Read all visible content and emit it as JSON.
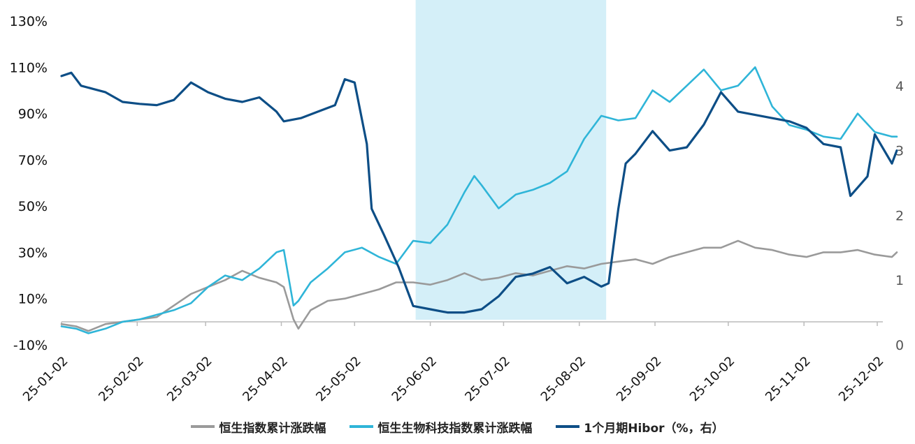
{
  "chart_data": {
    "type": "line",
    "title": "",
    "colors": {
      "hsi": "#9a9a9a",
      "hsbio": "#2fb5d8",
      "hibor": "#0d4e86",
      "highlight": "#d4eff8"
    },
    "x_ticks": [
      "25-01-02",
      "25-02-02",
      "25-03-02",
      "25-04-02",
      "25-05-02",
      "25-06-02",
      "25-07-02",
      "25-08-02",
      "25-09-02",
      "25-10-02",
      "25-11-02",
      "25-12-02"
    ],
    "y_left": {
      "ticks": [
        "130%",
        "110%",
        "90%",
        "70%",
        "50%",
        "30%",
        "10%",
        "-10%"
      ],
      "range": [
        -10,
        130
      ]
    },
    "y_right": {
      "ticks": [
        "5",
        "4",
        "3",
        "2",
        "1",
        "0"
      ],
      "range": [
        0,
        5
      ]
    },
    "highlight": {
      "from": "2025-05-27",
      "to": "2025-08-13"
    },
    "legend": [
      "恒生指数累计涨跌幅",
      "恒生生物科技指数累计涨跌幅",
      "1个月期Hibor（%，右）"
    ],
    "series": [
      {
        "name": "恒生指数累计涨跌幅",
        "axis": "left",
        "color_key": "hsi",
        "points": [
          [
            "2025-01-02",
            -1
          ],
          [
            "2025-01-08",
            -2
          ],
          [
            "2025-01-13",
            -4
          ],
          [
            "2025-01-20",
            -1
          ],
          [
            "2025-01-27",
            0
          ],
          [
            "2025-02-03",
            1
          ],
          [
            "2025-02-10",
            2
          ],
          [
            "2025-02-17",
            7
          ],
          [
            "2025-02-24",
            12
          ],
          [
            "2025-03-03",
            15
          ],
          [
            "2025-03-10",
            18
          ],
          [
            "2025-03-17",
            22
          ],
          [
            "2025-03-24",
            19
          ],
          [
            "2025-03-31",
            17
          ],
          [
            "2025-04-03",
            15
          ],
          [
            "2025-04-07",
            1
          ],
          [
            "2025-04-09",
            -3
          ],
          [
            "2025-04-14",
            5
          ],
          [
            "2025-04-21",
            9
          ],
          [
            "2025-04-28",
            10
          ],
          [
            "2025-05-05",
            12
          ],
          [
            "2025-05-12",
            14
          ],
          [
            "2025-05-19",
            17
          ],
          [
            "2025-05-26",
            17
          ],
          [
            "2025-06-02",
            16
          ],
          [
            "2025-06-09",
            18
          ],
          [
            "2025-06-16",
            21
          ],
          [
            "2025-06-23",
            18
          ],
          [
            "2025-06-30",
            19
          ],
          [
            "2025-07-07",
            21
          ],
          [
            "2025-07-14",
            20
          ],
          [
            "2025-07-21",
            22
          ],
          [
            "2025-07-28",
            24
          ],
          [
            "2025-08-04",
            23
          ],
          [
            "2025-08-11",
            25
          ],
          [
            "2025-08-18",
            26
          ],
          [
            "2025-08-25",
            27
          ],
          [
            "2025-09-01",
            25
          ],
          [
            "2025-09-08",
            28
          ],
          [
            "2025-09-15",
            30
          ],
          [
            "2025-09-22",
            32
          ],
          [
            "2025-09-29",
            32
          ],
          [
            "2025-10-06",
            35
          ],
          [
            "2025-10-13",
            32
          ],
          [
            "2025-10-20",
            31
          ],
          [
            "2025-10-27",
            29
          ],
          [
            "2025-11-03",
            28
          ],
          [
            "2025-11-10",
            30
          ],
          [
            "2025-11-17",
            30
          ],
          [
            "2025-11-24",
            31
          ],
          [
            "2025-12-01",
            29
          ],
          [
            "2025-12-08",
            28
          ],
          [
            "2025-12-10",
            30
          ]
        ]
      },
      {
        "name": "恒生生物科技指数累计涨跌幅",
        "axis": "left",
        "color_key": "hsbio",
        "points": [
          [
            "2025-01-02",
            -2
          ],
          [
            "2025-01-08",
            -3
          ],
          [
            "2025-01-13",
            -5
          ],
          [
            "2025-01-20",
            -3
          ],
          [
            "2025-01-27",
            0
          ],
          [
            "2025-02-03",
            1
          ],
          [
            "2025-02-10",
            3
          ],
          [
            "2025-02-17",
            5
          ],
          [
            "2025-02-24",
            8
          ],
          [
            "2025-03-03",
            15
          ],
          [
            "2025-03-10",
            20
          ],
          [
            "2025-03-17",
            18
          ],
          [
            "2025-03-24",
            23
          ],
          [
            "2025-03-31",
            30
          ],
          [
            "2025-04-03",
            31
          ],
          [
            "2025-04-07",
            7
          ],
          [
            "2025-04-09",
            9
          ],
          [
            "2025-04-14",
            17
          ],
          [
            "2025-04-21",
            23
          ],
          [
            "2025-04-28",
            30
          ],
          [
            "2025-05-05",
            32
          ],
          [
            "2025-05-12",
            28
          ],
          [
            "2025-05-19",
            25
          ],
          [
            "2025-05-26",
            35
          ],
          [
            "2025-06-02",
            34
          ],
          [
            "2025-06-09",
            42
          ],
          [
            "2025-06-16",
            56
          ],
          [
            "2025-06-20",
            63
          ],
          [
            "2025-06-23",
            59
          ],
          [
            "2025-06-30",
            49
          ],
          [
            "2025-07-07",
            55
          ],
          [
            "2025-07-14",
            57
          ],
          [
            "2025-07-21",
            60
          ],
          [
            "2025-07-28",
            65
          ],
          [
            "2025-08-04",
            79
          ],
          [
            "2025-08-11",
            89
          ],
          [
            "2025-08-18",
            87
          ],
          [
            "2025-08-25",
            88
          ],
          [
            "2025-09-01",
            100
          ],
          [
            "2025-09-08",
            95
          ],
          [
            "2025-09-15",
            102
          ],
          [
            "2025-09-22",
            109
          ],
          [
            "2025-09-29",
            100
          ],
          [
            "2025-10-06",
            102
          ],
          [
            "2025-10-13",
            110
          ],
          [
            "2025-10-20",
            93
          ],
          [
            "2025-10-27",
            85
          ],
          [
            "2025-11-03",
            83
          ],
          [
            "2025-11-10",
            80
          ],
          [
            "2025-11-17",
            79
          ],
          [
            "2025-11-24",
            90
          ],
          [
            "2025-12-01",
            82
          ],
          [
            "2025-12-08",
            80
          ],
          [
            "2025-12-10",
            80
          ]
        ]
      },
      {
        "name": "1个月期Hibor（%，右）",
        "axis": "right",
        "color_key": "hibor",
        "points": [
          [
            "2025-01-02",
            4.15
          ],
          [
            "2025-01-06",
            4.2
          ],
          [
            "2025-01-10",
            4.0
          ],
          [
            "2025-01-15",
            3.95
          ],
          [
            "2025-01-20",
            3.9
          ],
          [
            "2025-01-27",
            3.75
          ],
          [
            "2025-02-03",
            3.72
          ],
          [
            "2025-02-10",
            3.7
          ],
          [
            "2025-02-17",
            3.78
          ],
          [
            "2025-02-24",
            4.05
          ],
          [
            "2025-03-03",
            3.9
          ],
          [
            "2025-03-10",
            3.8
          ],
          [
            "2025-03-17",
            3.75
          ],
          [
            "2025-03-24",
            3.82
          ],
          [
            "2025-03-31",
            3.6
          ],
          [
            "2025-04-03",
            3.45
          ],
          [
            "2025-04-10",
            3.5
          ],
          [
            "2025-04-17",
            3.6
          ],
          [
            "2025-04-24",
            3.7
          ],
          [
            "2025-04-28",
            4.1
          ],
          [
            "2025-05-02",
            4.05
          ],
          [
            "2025-05-07",
            3.1
          ],
          [
            "2025-05-09",
            2.1
          ],
          [
            "2025-05-14",
            1.7
          ],
          [
            "2025-05-20",
            1.2
          ],
          [
            "2025-05-26",
            0.6
          ],
          [
            "2025-06-02",
            0.55
          ],
          [
            "2025-06-09",
            0.5
          ],
          [
            "2025-06-16",
            0.5
          ],
          [
            "2025-06-23",
            0.55
          ],
          [
            "2025-06-30",
            0.75
          ],
          [
            "2025-07-07",
            1.05
          ],
          [
            "2025-07-14",
            1.1
          ],
          [
            "2025-07-21",
            1.2
          ],
          [
            "2025-07-28",
            0.95
          ],
          [
            "2025-08-04",
            1.05
          ],
          [
            "2025-08-11",
            0.9
          ],
          [
            "2025-08-14",
            0.95
          ],
          [
            "2025-08-18",
            2.1
          ],
          [
            "2025-08-21",
            2.8
          ],
          [
            "2025-08-25",
            2.95
          ],
          [
            "2025-09-01",
            3.3
          ],
          [
            "2025-09-08",
            3.0
          ],
          [
            "2025-09-15",
            3.05
          ],
          [
            "2025-09-22",
            3.4
          ],
          [
            "2025-09-29",
            3.9
          ],
          [
            "2025-10-06",
            3.6
          ],
          [
            "2025-10-13",
            3.55
          ],
          [
            "2025-10-20",
            3.5
          ],
          [
            "2025-10-27",
            3.45
          ],
          [
            "2025-11-03",
            3.35
          ],
          [
            "2025-11-10",
            3.1
          ],
          [
            "2025-11-17",
            3.05
          ],
          [
            "2025-11-21",
            2.3
          ],
          [
            "2025-11-28",
            2.6
          ],
          [
            "2025-12-01",
            3.25
          ],
          [
            "2025-12-08",
            2.8
          ],
          [
            "2025-12-10",
            3.0
          ]
        ]
      }
    ]
  }
}
